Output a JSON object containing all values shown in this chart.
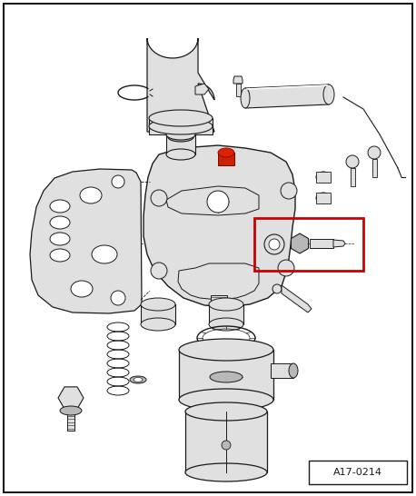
{
  "bg_color": "#ffffff",
  "diagram_label": "A17-0214",
  "lc": "#1a1a1a",
  "red_color": "#cc0000",
  "lg": "#e0e0e0",
  "mg": "#b8b8b8",
  "dg": "#888888",
  "red_part": "#cc2200"
}
